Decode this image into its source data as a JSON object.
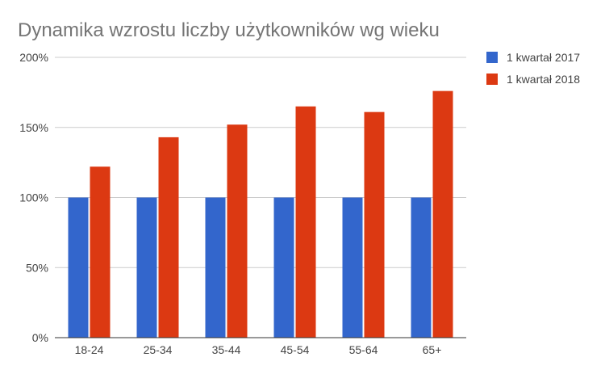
{
  "chart_data": {
    "type": "bar",
    "title": "Dynamika wzrostu liczby użytkowników wg wieku",
    "categories": [
      "18-24",
      "25-34",
      "35-44",
      "45-54",
      "55-64",
      "65+"
    ],
    "series": [
      {
        "name": "1 kwartał 2017",
        "color": "#3366cc",
        "values": [
          100,
          100,
          100,
          100,
          100,
          100
        ]
      },
      {
        "name": "1 kwartał 2018",
        "color": "#dc3912",
        "values": [
          122,
          143,
          152,
          165,
          161,
          176
        ]
      }
    ],
    "yticks": [
      "0%",
      "50%",
      "100%",
      "150%",
      "200%"
    ],
    "ytick_values": [
      0,
      50,
      100,
      150,
      200
    ],
    "ylim": [
      0,
      200
    ],
    "grid": true,
    "legend_position": "right"
  }
}
